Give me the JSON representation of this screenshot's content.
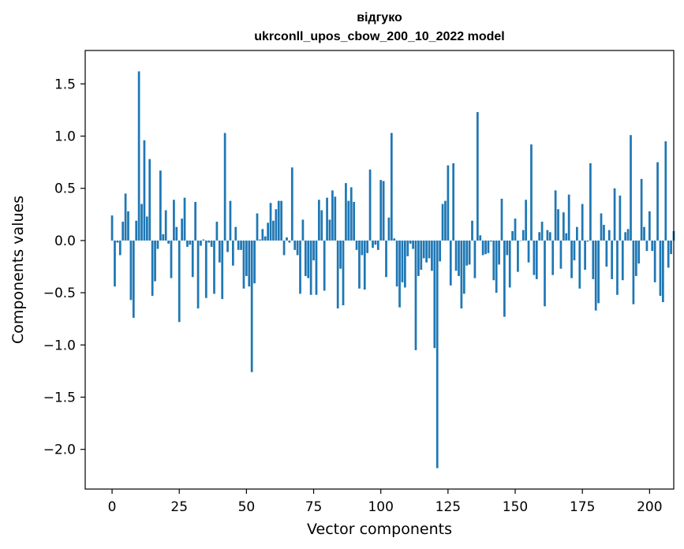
{
  "chart_data": {
    "type": "bar",
    "title_line1": "відгуко",
    "title_line2": "ukrconll_upos_cbow_200_10_2022 model",
    "xlabel": "Vector components",
    "ylabel": "Components values",
    "xlim": [
      -10,
      209
    ],
    "ylim": [
      -2.38,
      1.82
    ],
    "xticks": [
      0,
      25,
      50,
      75,
      100,
      125,
      150,
      175,
      200
    ],
    "xtick_labels": [
      "0",
      "25",
      "50",
      "75",
      "100",
      "125",
      "150",
      "175",
      "200"
    ],
    "yticks": [
      -2.0,
      -1.5,
      -1.0,
      -0.5,
      0.0,
      0.5,
      1.0,
      1.5
    ],
    "ytick_labels": [
      "−2.0",
      "−1.5",
      "−1.0",
      "−0.5",
      "0.0",
      "0.5",
      "1.0",
      "1.5"
    ],
    "bar_color": "#1f77b4",
    "values": [
      0.24,
      -0.44,
      -0.02,
      -0.14,
      0.18,
      0.45,
      0.28,
      -0.57,
      -0.74,
      0.19,
      1.62,
      0.35,
      0.96,
      0.23,
      0.78,
      -0.53,
      -0.39,
      -0.08,
      0.67,
      0.06,
      0.29,
      -0.03,
      -0.36,
      0.39,
      0.13,
      -0.78,
      0.21,
      0.41,
      -0.06,
      -0.04,
      -0.35,
      0.37,
      -0.65,
      -0.05,
      0.01,
      -0.55,
      -0.02,
      -0.06,
      -0.51,
      0.18,
      -0.21,
      -0.56,
      1.03,
      -0.11,
      0.38,
      -0.24,
      0.13,
      -0.09,
      -0.09,
      -0.46,
      -0.34,
      -0.44,
      -1.26,
      -0.41,
      0.26,
      0.01,
      0.11,
      0.04,
      0.17,
      0.36,
      0.19,
      0.3,
      0.38,
      0.38,
      -0.14,
      0.03,
      -0.02,
      0.7,
      -0.09,
      -0.14,
      -0.51,
      0.2,
      -0.34,
      -0.36,
      -0.52,
      -0.19,
      -0.52,
      0.39,
      0.29,
      -0.48,
      0.41,
      0.2,
      0.48,
      0.42,
      -0.65,
      -0.27,
      -0.62,
      0.55,
      0.38,
      0.51,
      0.37,
      -0.09,
      -0.46,
      -0.14,
      -0.47,
      -0.12,
      0.68,
      -0.07,
      -0.04,
      -0.09,
      0.58,
      0.57,
      -0.35,
      0.22,
      1.03,
      0.02,
      -0.44,
      -0.64,
      -0.4,
      -0.45,
      -0.15,
      -0.03,
      -0.08,
      -1.05,
      -0.34,
      -0.28,
      -0.17,
      -0.21,
      -0.17,
      -0.29,
      -1.03,
      -2.18,
      -0.2,
      0.35,
      0.38,
      0.72,
      -0.43,
      0.74,
      -0.29,
      -0.34,
      -0.65,
      -0.51,
      -0.24,
      -0.23,
      0.19,
      -0.36,
      1.23,
      0.05,
      -0.14,
      -0.13,
      -0.12,
      -0.01,
      -0.38,
      -0.5,
      -0.23,
      0.4,
      -0.73,
      -0.14,
      -0.45,
      0.09,
      0.21,
      -0.3,
      0.0,
      0.1,
      0.39,
      -0.21,
      0.92,
      -0.33,
      -0.37,
      0.08,
      0.18,
      -0.63,
      0.1,
      0.08,
      -0.33,
      0.48,
      0.3,
      -0.27,
      0.27,
      0.07,
      0.44,
      -0.36,
      -0.19,
      0.13,
      -0.46,
      0.35,
      -0.28,
      -0.01,
      0.74,
      -0.37,
      -0.67,
      -0.6,
      0.26,
      0.15,
      -0.25,
      0.1,
      -0.37,
      0.5,
      -0.52,
      0.43,
      -0.38,
      0.08,
      0.11,
      1.01,
      -0.61,
      -0.34,
      -0.22,
      0.59,
      0.13,
      -0.1,
      0.28,
      -0.1,
      -0.4,
      0.75,
      -0.53,
      -0.59,
      0.95,
      -0.26,
      -0.13,
      0.09
    ]
  }
}
